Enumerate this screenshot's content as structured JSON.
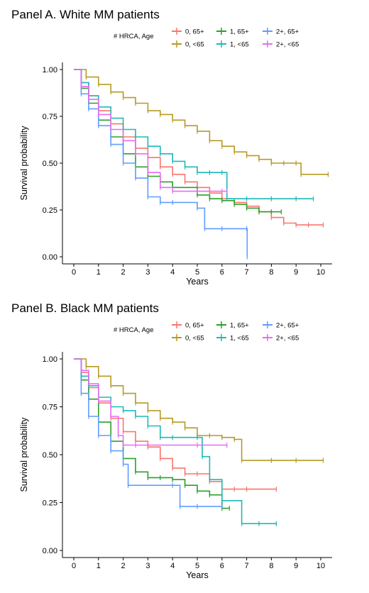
{
  "chart_data": [
    {
      "type": "line",
      "title": "Panel A. White MM patients",
      "xlabel": "Years",
      "ylabel": "Survival probability",
      "xlim": [
        0,
        10
      ],
      "ylim": [
        0,
        1
      ],
      "xticks": [
        "0",
        "1",
        "2",
        "3",
        "4",
        "5",
        "6",
        "7",
        "8",
        "9",
        "10"
      ],
      "yticks": [
        "0.00",
        "0.25",
        "0.50",
        "0.75",
        "1.00"
      ],
      "grid": false,
      "legend": {
        "title": "# HRCA, Age",
        "placement": "top",
        "entries": [
          "0, 65+",
          "1, 65+",
          "2+, 65+",
          "0, <65",
          "1, <65",
          "2+, <65"
        ]
      },
      "series": [
        {
          "name": "0, 65+",
          "color": "#f8766d",
          "x": [
            0,
            0.3,
            0.6,
            1,
            1.5,
            2,
            2.5,
            3,
            3.5,
            4,
            4.5,
            5,
            5.5,
            6,
            6.5,
            7,
            7.5,
            8,
            8.5,
            9,
            9.5,
            10.1
          ],
          "y": [
            1,
            0.93,
            0.86,
            0.78,
            0.71,
            0.64,
            0.58,
            0.53,
            0.48,
            0.44,
            0.4,
            0.37,
            0.34,
            0.31,
            0.29,
            0.27,
            0.24,
            0.21,
            0.18,
            0.17,
            0.17,
            0.17
          ]
        },
        {
          "name": "1, 65+",
          "color": "#2aa02a",
          "x": [
            0,
            0.3,
            0.6,
            1,
            1.5,
            2,
            2.5,
            3,
            3.5,
            4,
            5,
            5.5,
            6,
            6.5,
            7,
            7.5,
            8,
            8.4
          ],
          "y": [
            1,
            0.9,
            0.82,
            0.73,
            0.64,
            0.55,
            0.48,
            0.43,
            0.4,
            0.37,
            0.33,
            0.31,
            0.3,
            0.28,
            0.26,
            0.24,
            0.24,
            0.24
          ]
        },
        {
          "name": "2+, 65+",
          "color": "#619cff",
          "x": [
            0,
            0.3,
            0.6,
            1,
            1.5,
            2,
            2.5,
            3,
            3.5,
            4,
            5,
            5.3,
            6,
            7,
            7.02
          ],
          "y": [
            1,
            0.87,
            0.79,
            0.7,
            0.6,
            0.5,
            0.42,
            0.32,
            0.29,
            0.29,
            0.26,
            0.15,
            0.15,
            0.15,
            0.0
          ]
        },
        {
          "name": "0, <65",
          "color": "#b79a23",
          "x": [
            0,
            0.5,
            1,
            1.5,
            2,
            2.5,
            3,
            3.5,
            4,
            4.5,
            5,
            5.5,
            6,
            6.5,
            7,
            7.5,
            8,
            8.5,
            9,
            9.2,
            10.3
          ],
          "y": [
            1,
            0.96,
            0.92,
            0.88,
            0.85,
            0.82,
            0.78,
            0.76,
            0.73,
            0.7,
            0.67,
            0.62,
            0.59,
            0.56,
            0.54,
            0.52,
            0.5,
            0.5,
            0.5,
            0.44,
            0.44
          ]
        },
        {
          "name": "1, <65",
          "color": "#1fb8b8",
          "x": [
            0,
            0.3,
            0.6,
            1,
            1.5,
            2,
            2.5,
            3,
            3.5,
            4,
            4.5,
            5,
            5.5,
            6,
            6.2,
            7,
            8,
            9,
            9.7
          ],
          "y": [
            1,
            0.93,
            0.86,
            0.8,
            0.74,
            0.68,
            0.64,
            0.59,
            0.55,
            0.51,
            0.48,
            0.45,
            0.45,
            0.45,
            0.31,
            0.31,
            0.31,
            0.31,
            0.31
          ]
        },
        {
          "name": "2+, <65",
          "color": "#e76bf3",
          "x": [
            0,
            0.3,
            0.6,
            1,
            1.5,
            2,
            2.5,
            3,
            3.5,
            4,
            5,
            6,
            6.2
          ],
          "y": [
            1,
            0.91,
            0.84,
            0.76,
            0.68,
            0.62,
            0.55,
            0.45,
            0.37,
            0.35,
            0.35,
            0.35,
            0.35
          ]
        }
      ]
    },
    {
      "type": "line",
      "title": "Panel B. Black MM patients",
      "xlabel": "Years",
      "ylabel": "Survival probability",
      "xlim": [
        0,
        10
      ],
      "ylim": [
        0,
        1
      ],
      "xticks": [
        "0",
        "1",
        "2",
        "3",
        "4",
        "5",
        "6",
        "7",
        "8",
        "9",
        "10"
      ],
      "yticks": [
        "0.00",
        "0.25",
        "0.50",
        "0.75",
        "1.00"
      ],
      "grid": false,
      "legend": {
        "title": "# HRCA, Age",
        "placement": "top",
        "entries": [
          "0, 65+",
          "1, 65+",
          "2+, 65+",
          "0, <65",
          "1, <65",
          "2+, <65"
        ]
      },
      "series": [
        {
          "name": "0, 65+",
          "color": "#f8766d",
          "x": [
            0,
            0.3,
            0.6,
            1,
            1.5,
            2,
            2.5,
            3,
            3.5,
            4,
            4.5,
            5,
            5.5,
            6,
            6.5,
            7,
            8.2
          ],
          "y": [
            1,
            0.93,
            0.85,
            0.77,
            0.69,
            0.62,
            0.57,
            0.54,
            0.48,
            0.43,
            0.4,
            0.4,
            0.36,
            0.32,
            0.32,
            0.32,
            0.32
          ]
        },
        {
          "name": "1, 65+",
          "color": "#2aa02a",
          "x": [
            0,
            0.3,
            0.6,
            1,
            1.5,
            2,
            2.5,
            3,
            3.5,
            4,
            4.5,
            5,
            5.5,
            6,
            6.3
          ],
          "y": [
            1,
            0.89,
            0.79,
            0.67,
            0.57,
            0.48,
            0.41,
            0.38,
            0.38,
            0.37,
            0.34,
            0.31,
            0.29,
            0.22,
            0.22
          ]
        },
        {
          "name": "2+, 65+",
          "color": "#619cff",
          "x": [
            0,
            0.3,
            0.6,
            1,
            1.5,
            2,
            2.2,
            4,
            4.3,
            5,
            6
          ],
          "y": [
            1,
            0.82,
            0.7,
            0.6,
            0.52,
            0.45,
            0.34,
            0.34,
            0.23,
            0.23,
            0.23
          ]
        },
        {
          "name": "0, <65",
          "color": "#b79a23",
          "x": [
            0,
            0.5,
            1,
            1.5,
            2,
            2.5,
            3,
            3.5,
            4,
            4.5,
            5,
            5.5,
            6,
            6.5,
            6.8,
            8,
            9,
            10.1
          ],
          "y": [
            1,
            0.96,
            0.91,
            0.86,
            0.82,
            0.77,
            0.73,
            0.69,
            0.67,
            0.64,
            0.6,
            0.6,
            0.59,
            0.58,
            0.47,
            0.47,
            0.47,
            0.47
          ]
        },
        {
          "name": "1, <65",
          "color": "#1fb8b8",
          "x": [
            0,
            0.3,
            0.6,
            1,
            1.5,
            2,
            2.5,
            3,
            3.5,
            4,
            5,
            5.2,
            5.5,
            6,
            6.8,
            7.5,
            8.2
          ],
          "y": [
            1,
            0.91,
            0.86,
            0.8,
            0.75,
            0.73,
            0.7,
            0.65,
            0.59,
            0.59,
            0.59,
            0.49,
            0.37,
            0.26,
            0.14,
            0.14,
            0.14
          ]
        },
        {
          "name": "2+, <65",
          "color": "#e76bf3",
          "x": [
            0,
            0.3,
            0.6,
            1,
            1.5,
            1.8,
            2,
            2.5,
            5,
            6.2
          ],
          "y": [
            1,
            0.94,
            0.87,
            0.78,
            0.7,
            0.6,
            0.55,
            0.55,
            0.55,
            0.55
          ]
        }
      ]
    }
  ]
}
